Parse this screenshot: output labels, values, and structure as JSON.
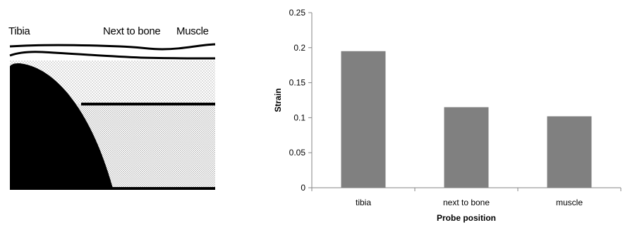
{
  "diagram": {
    "labels": {
      "tibia": "Tibia",
      "next_to_bone": "Next to bone",
      "muscle": "Muscle"
    },
    "colors": {
      "bone": "#000000",
      "tissue_dots": "#555555"
    }
  },
  "chart_data": {
    "type": "bar",
    "categories": [
      "tibia",
      "next to bone",
      "muscle"
    ],
    "values": [
      0.195,
      0.115,
      0.102
    ],
    "xlabel": "Probe position",
    "ylabel": "Strain",
    "ylim": [
      0,
      0.25
    ],
    "yticks": [
      0,
      0.05,
      0.1,
      0.15,
      0.2,
      0.25
    ],
    "ytick_labels": [
      "0",
      "0.05",
      "0.1",
      "0.15",
      "0.2",
      "0.25"
    ],
    "grid": false,
    "legend": "none",
    "bar_color": "#808080"
  }
}
